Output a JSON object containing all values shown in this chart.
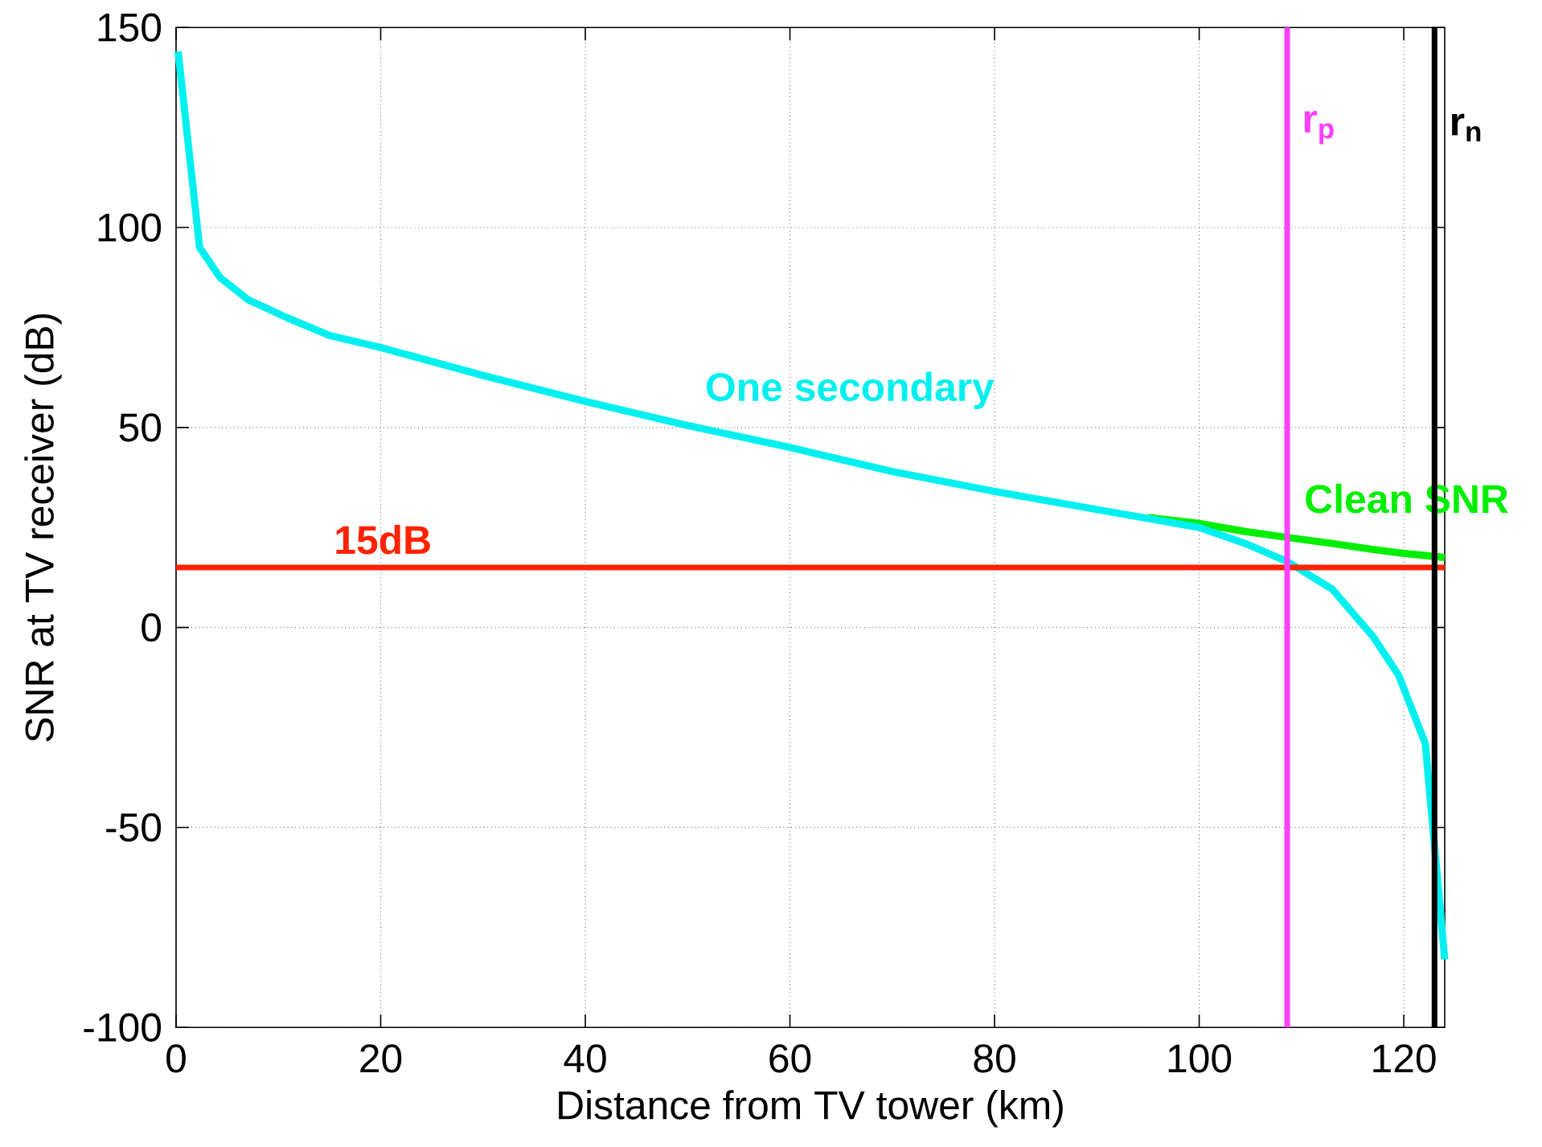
{
  "chart_data": {
    "type": "line",
    "xlabel": "Distance from TV tower (km)",
    "ylabel": "SNR at TV receiver (dB)",
    "xlim": [
      0,
      124
    ],
    "ylim": [
      -100,
      150
    ],
    "xticks": [
      0,
      20,
      40,
      60,
      80,
      100,
      120
    ],
    "yticks": [
      -100,
      -50,
      0,
      50,
      100,
      150
    ],
    "grid": true,
    "series": [
      {
        "name": "Clean SNR",
        "color": "#00ee00",
        "x": [
          95,
          100,
          104.5,
          108.6,
          113,
          117,
          120,
          124
        ],
        "values": [
          27.5,
          26,
          24,
          22.5,
          21,
          19.5,
          18.5,
          17.5
        ]
      },
      {
        "name": "One secondary",
        "color": "#00f0f0",
        "x": [
          0.2,
          2.3,
          4.3,
          7,
          10.8,
          15,
          20,
          30,
          40,
          50,
          60,
          70,
          80,
          90,
          100,
          104.5,
          108.6,
          113,
          117,
          119.5,
          122.1,
          124
        ],
        "values": [
          144,
          95,
          87.5,
          82,
          77.5,
          73,
          70,
          63,
          56.5,
          50.5,
          45,
          39,
          34,
          29.5,
          25,
          21,
          16.5,
          9.6,
          -2.3,
          -12,
          -29,
          -83
        ]
      }
    ],
    "ref_lines": [
      {
        "axis": "y",
        "value": 15,
        "label": "15dB",
        "color": "#ff2200"
      },
      {
        "axis": "x",
        "value": 108.6,
        "label": "r$_{p}$",
        "color": "#ff40ff"
      },
      {
        "axis": "x",
        "value": 123,
        "label": "r$_{n}$",
        "color": "#000000"
      }
    ]
  }
}
